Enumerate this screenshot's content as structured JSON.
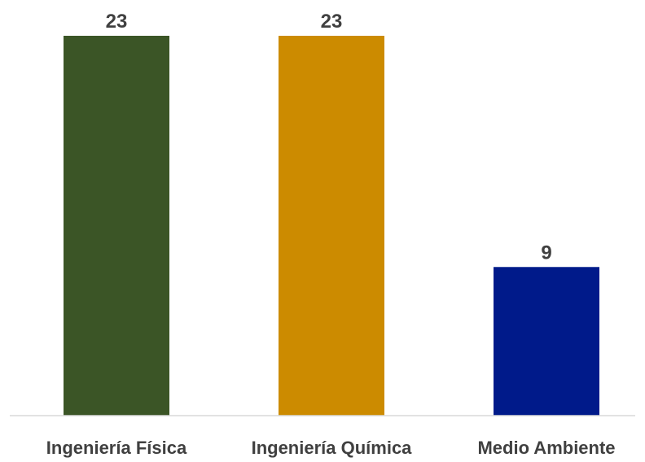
{
  "chart_data": {
    "type": "bar",
    "categories": [
      "Ingeniería Física",
      "Ingeniería Química",
      "Medio Ambiente"
    ],
    "values": [
      23,
      23,
      9
    ],
    "value_labels": [
      "23",
      "23",
      "9"
    ],
    "colors": [
      "#3b5526",
      "#cc8b00",
      "#001a8a"
    ],
    "title": "",
    "xlabel": "",
    "ylabel": "",
    "ylim": [
      0,
      23
    ],
    "grid": false,
    "legend": "none"
  },
  "style": {
    "axis_color": "#d9d9d9",
    "label_color": "#404040"
  }
}
